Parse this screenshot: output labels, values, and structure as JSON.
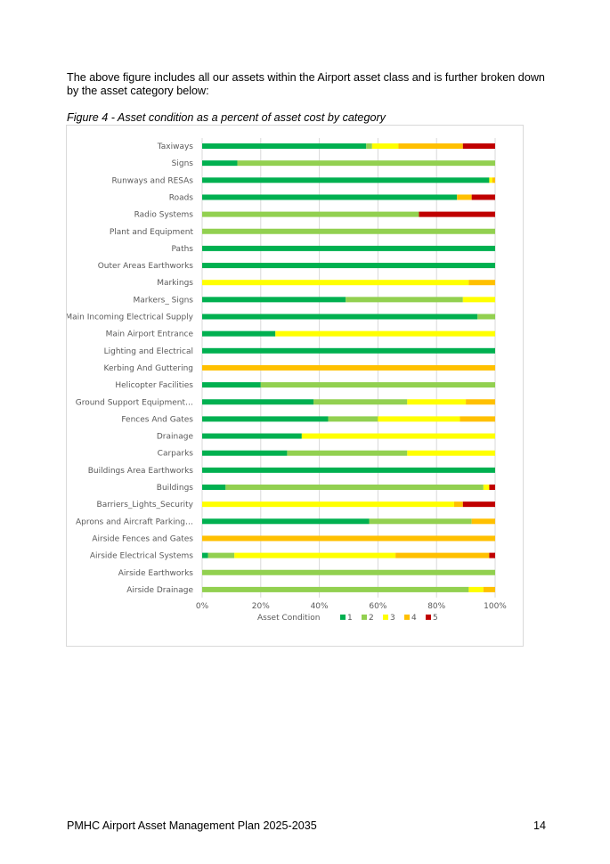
{
  "intro_text": "The above figure includes all our assets within the Airport asset class and is further broken down by the asset category below:",
  "caption": "Figure 4 - Asset condition as a percent of asset cost by category",
  "footer": {
    "left": "PMHC Airport Asset Management Plan 2025-2035",
    "page_number": "14"
  },
  "chart_data": {
    "type": "bar",
    "orientation": "horizontal",
    "stacked": "percent",
    "xlabel": "Asset Condition",
    "xlim": [
      0,
      100
    ],
    "x_ticks": [
      "0%",
      "20%",
      "40%",
      "60%",
      "80%",
      "100%"
    ],
    "legend_position": "bottom",
    "grid": true,
    "categories": [
      "Taxiways",
      "Signs",
      "Runways and RESAs",
      "Roads",
      "Radio Systems",
      "Plant and Equipment",
      "Paths",
      "Outer Areas Earthworks",
      "Markings",
      "Markers_ Signs",
      "Main Incoming Electrical Supply",
      "Main Airport Entrance",
      "Lighting and Electrical",
      "Kerbing And Guttering",
      "Helicopter Facilities",
      "Ground Support Equipment…",
      "Fences And Gates",
      "Drainage",
      "Carparks",
      "Buildings Area Earthworks",
      "Buildings",
      "Barriers_Lights_Security",
      "Aprons and Aircraft Parking…",
      "Airside Fences and Gates",
      "Airside Electrical Systems",
      "Airside Earthworks",
      "Airside Drainage"
    ],
    "series": [
      {
        "name": "1",
        "color": "#00b050",
        "values": [
          56,
          12,
          98,
          87,
          0,
          0,
          100,
          100,
          0,
          49,
          94,
          25,
          100,
          0,
          20,
          38,
          43,
          34,
          29,
          100,
          8,
          0,
          57,
          0,
          2,
          0,
          0
        ]
      },
      {
        "name": "2",
        "color": "#92d050",
        "values": [
          2,
          88,
          0,
          0,
          74,
          100,
          0,
          0,
          0,
          40,
          6,
          0,
          0,
          0,
          80,
          32,
          17,
          0,
          41,
          0,
          88,
          0,
          35,
          0,
          9,
          100,
          91
        ]
      },
      {
        "name": "3",
        "color": "#ffff00",
        "values": [
          9,
          0,
          1,
          0,
          0,
          0,
          0,
          0,
          91,
          11,
          0,
          75,
          0,
          0,
          0,
          20,
          28,
          66,
          30,
          0,
          2,
          86,
          0,
          0,
          55,
          0,
          5
        ]
      },
      {
        "name": "4",
        "color": "#ffc000",
        "values": [
          22,
          0,
          1,
          5,
          0,
          0,
          0,
          0,
          9,
          0,
          0,
          0,
          0,
          100,
          0,
          10,
          12,
          0,
          0,
          0,
          0,
          3,
          8,
          100,
          32,
          0,
          4
        ]
      },
      {
        "name": "5",
        "color": "#c00000",
        "values": [
          11,
          0,
          0,
          8,
          26,
          0,
          0,
          0,
          0,
          0,
          0,
          0,
          0,
          0,
          0,
          0,
          0,
          0,
          0,
          0,
          2,
          11,
          0,
          0,
          2,
          0,
          0
        ]
      }
    ]
  }
}
